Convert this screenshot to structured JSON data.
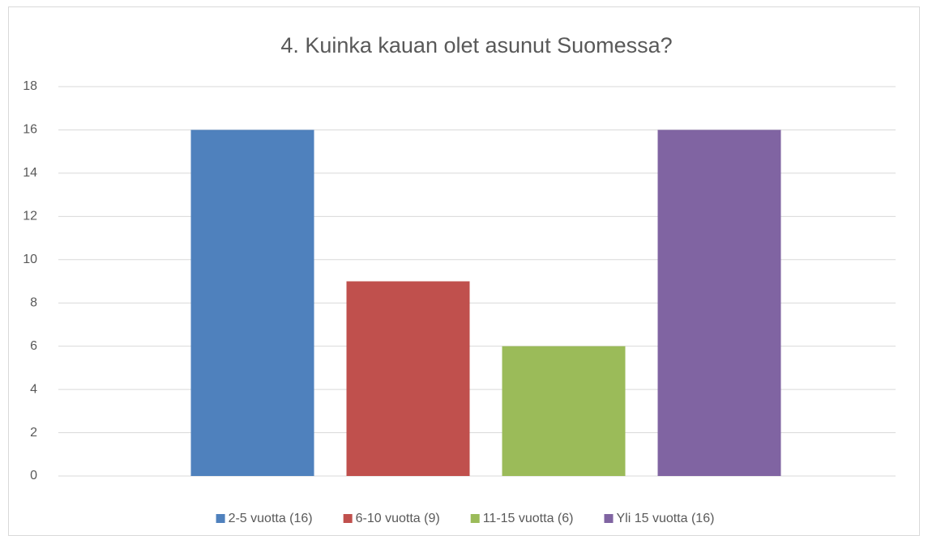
{
  "chart_data": {
    "type": "bar",
    "title": "4. Kuinka kauan olet asunut Suomessa?",
    "categories": [
      null
    ],
    "series": [
      {
        "name": "2-5 vuotta (16)",
        "color": "#4f81bd",
        "values": [
          16
        ]
      },
      {
        "name": "6-10 vuotta (9)",
        "color": "#c0504d",
        "values": [
          9
        ]
      },
      {
        "name": "11-15 vuotta (6)",
        "color": "#9bbb59",
        "values": [
          6
        ]
      },
      {
        "name": "Yli 15 vuotta (16)",
        "color": "#8064a2",
        "values": [
          16
        ]
      }
    ],
    "ylim": [
      0,
      18
    ],
    "yticks": [
      0,
      2,
      4,
      6,
      8,
      10,
      12,
      14,
      16,
      18
    ],
    "grid": true,
    "legend": "bottom"
  }
}
